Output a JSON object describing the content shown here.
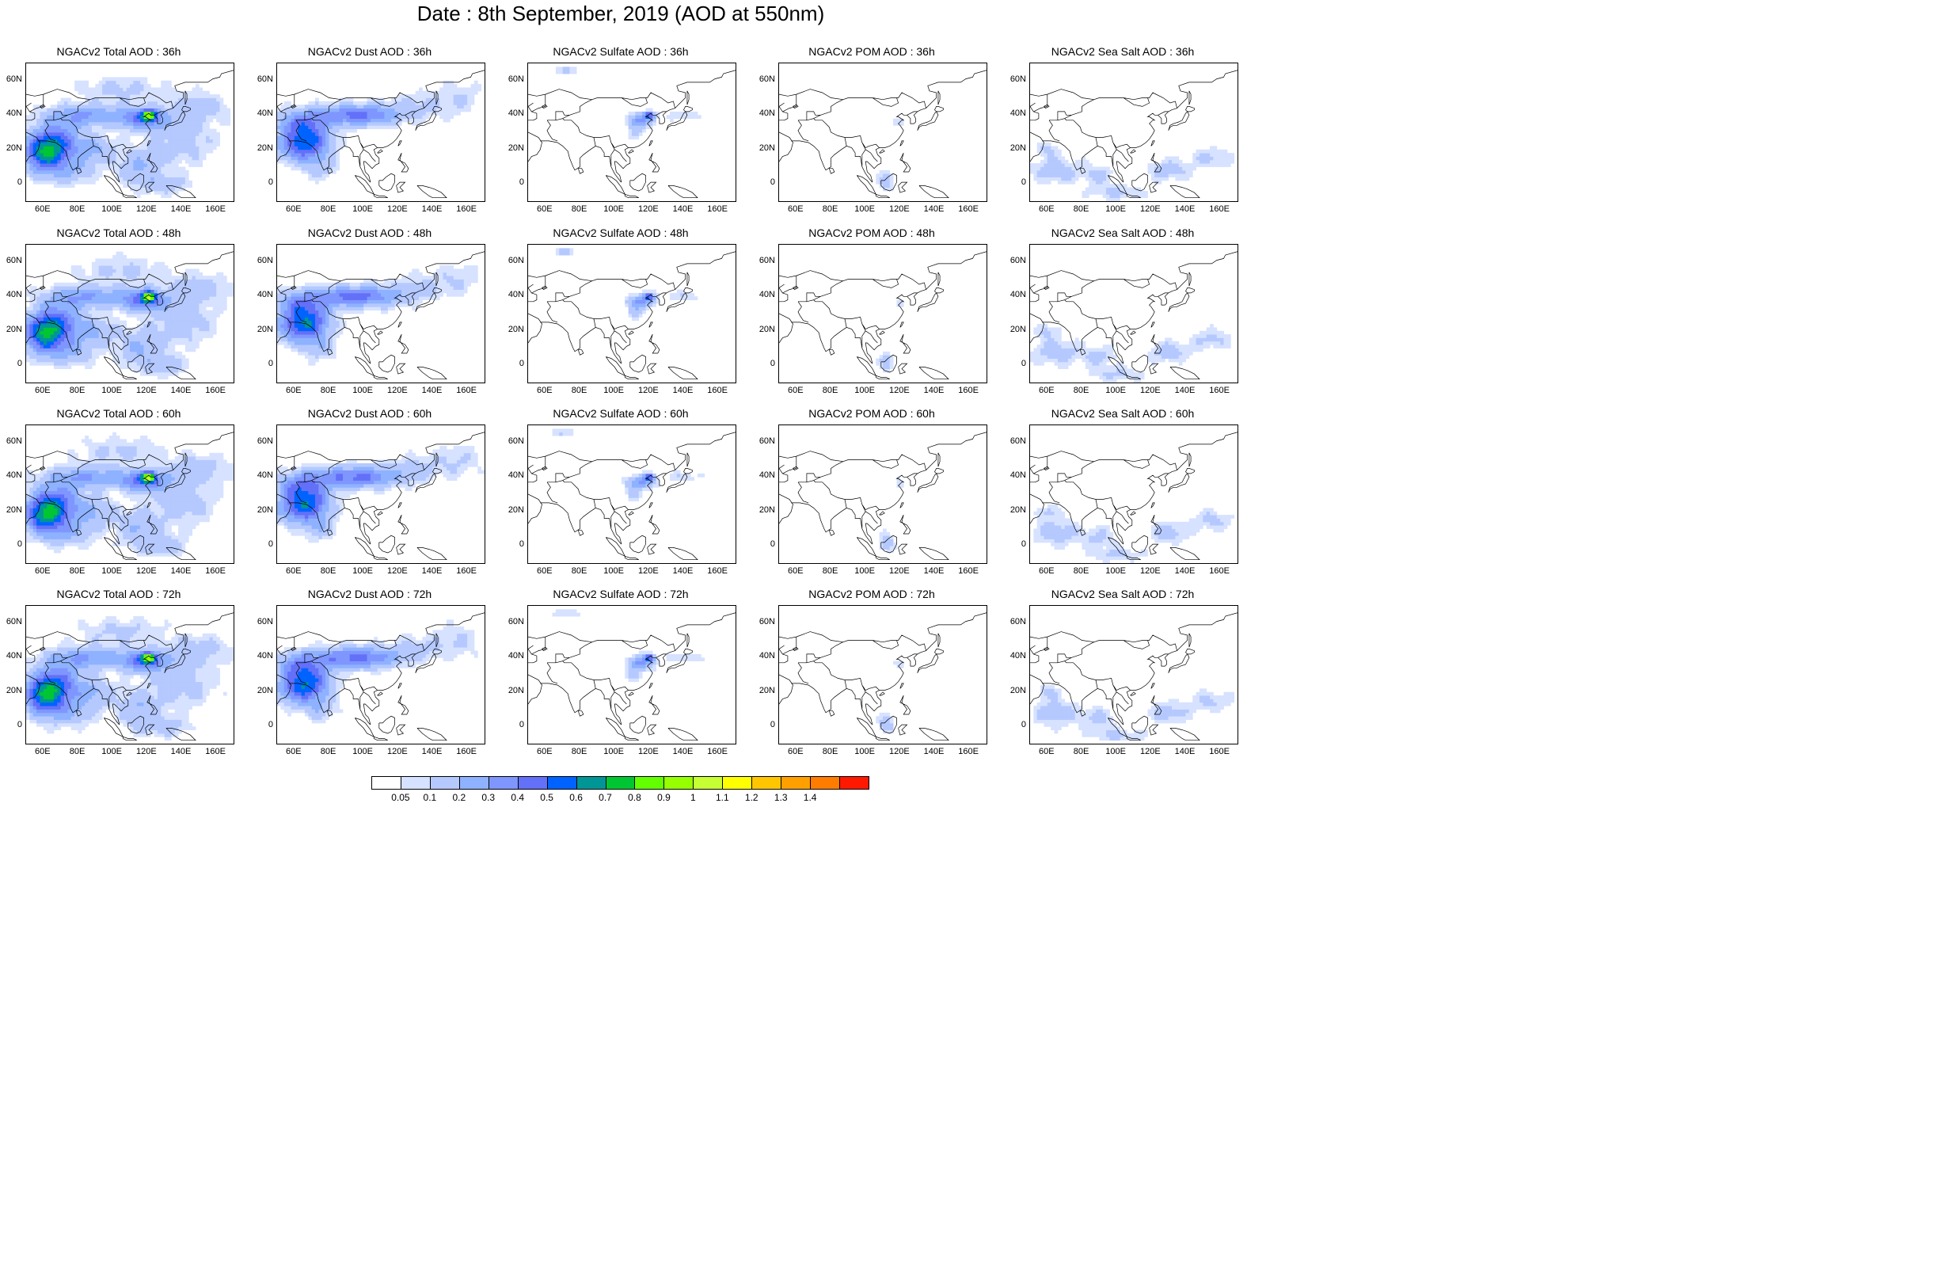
{
  "figure_title": "Date : 8th September, 2019 (AOD at 550nm)",
  "panels": [
    {
      "title": "NGACv2 Total AOD : 36h",
      "species": "total",
      "lead": 36
    },
    {
      "title": "NGACv2 Dust AOD : 36h",
      "species": "dust",
      "lead": 36
    },
    {
      "title": "NGACv2 Sulfate AOD : 36h",
      "species": "sulfate",
      "lead": 36
    },
    {
      "title": "NGACv2 POM AOD : 36h",
      "species": "pom",
      "lead": 36
    },
    {
      "title": "NGACv2 Sea Salt AOD : 36h",
      "species": "seasalt",
      "lead": 36
    },
    {
      "title": "NGACv2 Total AOD : 48h",
      "species": "total",
      "lead": 48
    },
    {
      "title": "NGACv2 Dust AOD : 48h",
      "species": "dust",
      "lead": 48
    },
    {
      "title": "NGACv2 Sulfate AOD : 48h",
      "species": "sulfate",
      "lead": 48
    },
    {
      "title": "NGACv2 POM AOD : 48h",
      "species": "pom",
      "lead": 48
    },
    {
      "title": "NGACv2 Sea Salt AOD : 48h",
      "species": "seasalt",
      "lead": 48
    },
    {
      "title": "NGACv2 Total AOD : 60h",
      "species": "total",
      "lead": 60
    },
    {
      "title": "NGACv2 Dust AOD : 60h",
      "species": "dust",
      "lead": 60
    },
    {
      "title": "NGACv2 Sulfate AOD : 60h",
      "species": "sulfate",
      "lead": 60
    },
    {
      "title": "NGACv2 POM AOD : 60h",
      "species": "pom",
      "lead": 60
    },
    {
      "title": "NGACv2 Sea Salt AOD : 60h",
      "species": "seasalt",
      "lead": 60
    },
    {
      "title": "NGACv2 Total AOD : 72h",
      "species": "total",
      "lead": 72
    },
    {
      "title": "NGACv2 Dust AOD : 72h",
      "species": "dust",
      "lead": 72
    },
    {
      "title": "NGACv2 Sulfate AOD : 72h",
      "species": "sulfate",
      "lead": 72
    },
    {
      "title": "NGACv2 POM AOD : 72h",
      "species": "pom",
      "lead": 72
    },
    {
      "title": "NGACv2 Sea Salt  AOD : 72h",
      "species": "seasalt",
      "lead": 72
    }
  ],
  "map": {
    "lon_range": [
      50,
      170
    ],
    "lat_range": [
      -10,
      70
    ],
    "lon_ticks": [
      "60E",
      "80E",
      "100E",
      "120E",
      "140E",
      "160E"
    ],
    "lat_ticks": [
      "60N",
      "40N",
      "20N",
      "0"
    ]
  },
  "colorbar": {
    "colors": [
      "#ffffff",
      "#d6e2ff",
      "#b5c9ff",
      "#8eb2ff",
      "#7f96ff",
      "#6370f8",
      "#0063ff",
      "#009696",
      "#00c633",
      "#63ff00",
      "#96ff00",
      "#c6ff33",
      "#ffff00",
      "#ffc600",
      "#ffa000",
      "#ff7c00",
      "#ff1900"
    ],
    "labels": [
      "0.05",
      "0.1",
      "0.2",
      "0.3",
      "0.4",
      "0.5",
      "0.6",
      "0.7",
      "0.8",
      "0.9",
      "1",
      "1.1",
      "1.2",
      "1.3",
      "1.4"
    ]
  }
}
